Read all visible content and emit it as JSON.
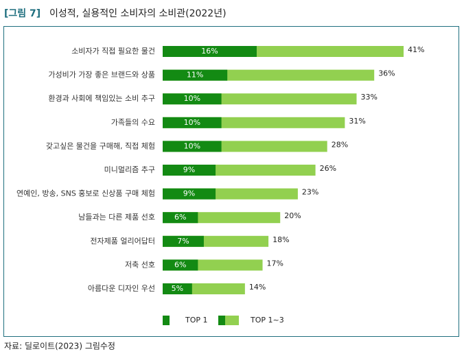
{
  "chart_data": {
    "type": "bar",
    "orientation": "horizontal",
    "figure_label": "[그림 7]",
    "title": "이성적, 실용적인 소비자의 소비관(2022년)",
    "source": "자료: 딜로이트(2023) 그림수정",
    "categories": [
      "소비자가 직접 필요한 물건",
      "가성비가 가장 좋은 브랜드와 상품",
      "환경과 사회에 책임있는 소비 추구",
      "가족들의 수요",
      "갖고싶은 물건을 구매해, 직접 체험",
      "미니멀리즘 추구",
      "연예인, 방송, SNS 홍보로 신상품 구매 체험",
      "남들과는 다른 제품 선호",
      "전자제품 얼리어답터",
      "저축 선호",
      "아름다운 디자인 우선"
    ],
    "series": [
      {
        "name": "TOP 1~3",
        "color": "#92d050",
        "values": [
          41,
          36,
          33,
          31,
          28,
          26,
          23,
          20,
          18,
          17,
          14
        ],
        "value_labels": [
          "41%",
          "36%",
          "33%",
          "31%",
          "28%",
          "26%",
          "23%",
          "20%",
          "18%",
          "17%",
          "14%"
        ]
      },
      {
        "name": "TOP 1",
        "color": "#138a13",
        "values": [
          16,
          11,
          10,
          10,
          10,
          9,
          9,
          6,
          7,
          6,
          5
        ],
        "value_labels": [
          "16%",
          "11%",
          "10%",
          "10%",
          "10%",
          "9%",
          "9%",
          "6%",
          "7%",
          "6%",
          "5%"
        ]
      }
    ]
  }
}
